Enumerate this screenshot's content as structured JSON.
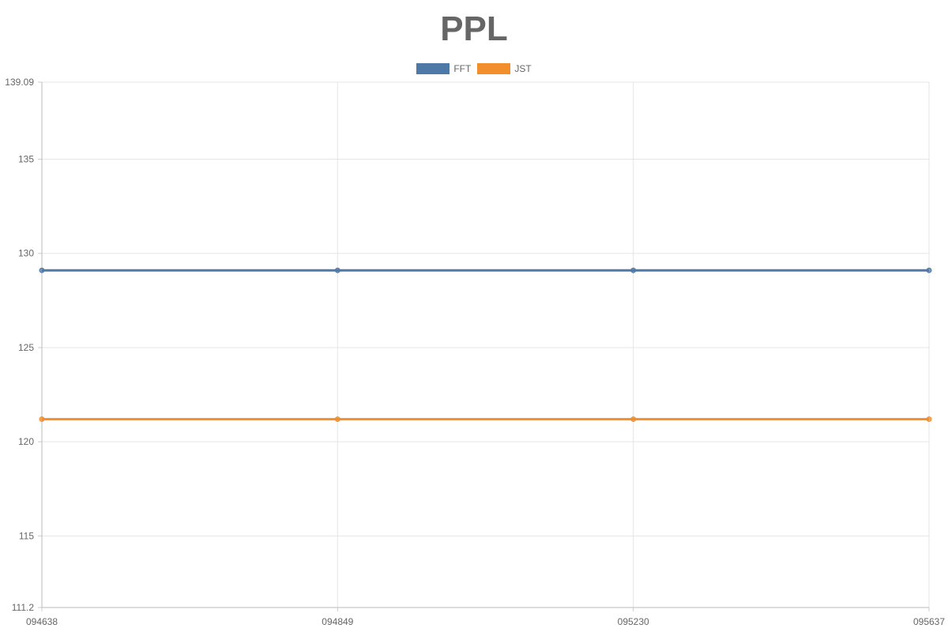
{
  "chart_data": {
    "type": "line",
    "title": "PPL",
    "xlabel": "",
    "ylabel": "",
    "x": [
      "094638",
      "094849",
      "095230",
      "095637"
    ],
    "series": [
      {
        "name": "FFT",
        "values": [
          129.1,
          129.1,
          129.1,
          129.1
        ],
        "color": "#4e79a7"
      },
      {
        "name": "JST",
        "values": [
          121.2,
          121.2,
          121.2,
          121.2
        ],
        "color": "#f28e2b"
      }
    ],
    "ylim": [
      111.2,
      139.09
    ],
    "yticks": [
      "139.09",
      "135",
      "130",
      "125",
      "120",
      "115",
      "111.2"
    ],
    "ytick_values": [
      139.09,
      135,
      130,
      125,
      120,
      115,
      111.2
    ],
    "grid": true,
    "legend_position": "top-center"
  }
}
